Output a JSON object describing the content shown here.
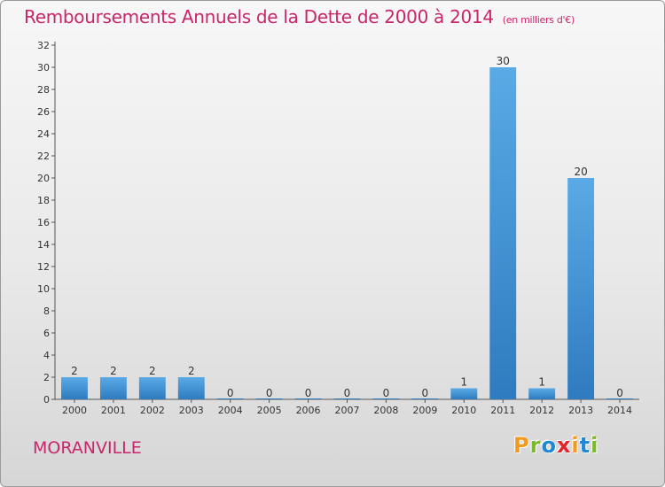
{
  "title": "Remboursements Annuels de la Dette de 2000 à 2014",
  "subtitle": "(en milliers d'€)",
  "commune": "MORANVILLE",
  "logo": {
    "letters": [
      "P",
      "r",
      "o",
      "x",
      "i",
      "t",
      "i"
    ],
    "colors": [
      "#f39a1e",
      "#7ab929",
      "#1e88d6",
      "#e2252b",
      "#f39a1e",
      "#1e88d6",
      "#7ab929"
    ]
  },
  "colors": {
    "title": "#c8266b",
    "bar_light": "#5aaae6",
    "bar_dark": "#2e7bbf"
  },
  "chart_data": {
    "type": "bar",
    "title": "Remboursements Annuels de la Dette de 2000 à 2014",
    "subtitle": "(en milliers d'€)",
    "categories": [
      "2000",
      "2001",
      "2002",
      "2003",
      "2004",
      "2005",
      "2006",
      "2007",
      "2008",
      "2009",
      "2010",
      "2011",
      "2012",
      "2013",
      "2014"
    ],
    "values": [
      2,
      2,
      2,
      2,
      0,
      0,
      0,
      0,
      0,
      0,
      1,
      30,
      1,
      20,
      0
    ],
    "value_labels": [
      "2",
      "2",
      "2",
      "2",
      "0",
      "0",
      "0",
      "0",
      "0",
      "0",
      "1",
      "30",
      "1",
      "20",
      "0"
    ],
    "ylim": [
      0,
      32
    ],
    "yticks": [
      0,
      2,
      4,
      6,
      8,
      10,
      12,
      14,
      16,
      18,
      20,
      22,
      24,
      26,
      28,
      30,
      32
    ],
    "grid": false,
    "legend": "none"
  }
}
